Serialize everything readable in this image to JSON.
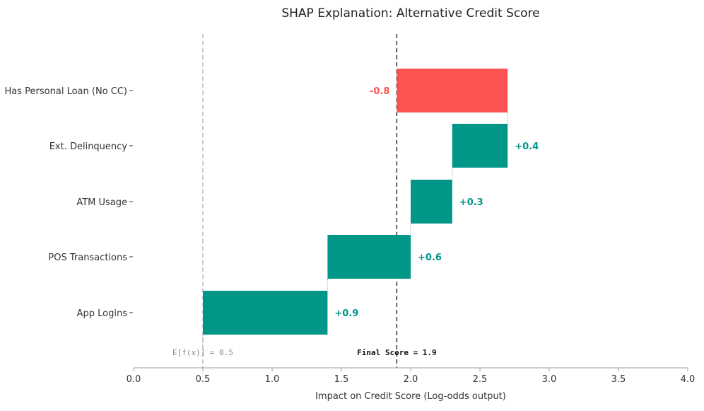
{
  "chart_data": {
    "type": "bar",
    "subtype": "waterfall",
    "title": "SHAP Explanation: Alternative Credit Score",
    "xlabel": "Impact on Credit Score (Log-odds output)",
    "xlim": [
      0.0,
      4.0
    ],
    "xticks": [
      "0.0",
      "0.5",
      "1.0",
      "1.5",
      "2.0",
      "2.5",
      "3.0",
      "3.5",
      "4.0"
    ],
    "xtick_values": [
      0.0,
      0.5,
      1.0,
      1.5,
      2.0,
      2.5,
      3.0,
      3.5,
      4.0
    ],
    "base_value": 0.5,
    "base_label": "E[f(x)] = 0.5",
    "final_value": 1.9,
    "final_label": "Final Score = 1.9",
    "colors": {
      "positive": "#009688",
      "negative": "#ff5252",
      "base_line": "#b0bec5",
      "final_line": "#111111",
      "axis": "#90a4ae"
    },
    "features": [
      {
        "name": "Has Personal Loan (No CC)",
        "start": 2.7,
        "end": 1.9,
        "value": -0.8,
        "label": "-0.8"
      },
      {
        "name": "Ext. Delinquency",
        "start": 2.3,
        "end": 2.7,
        "value": 0.4,
        "label": "+0.4"
      },
      {
        "name": "ATM Usage",
        "start": 2.0,
        "end": 2.3,
        "value": 0.3,
        "label": "+0.3"
      },
      {
        "name": "POS Transactions",
        "start": 1.4,
        "end": 2.0,
        "value": 0.6,
        "label": "+0.6"
      },
      {
        "name": "App Logins",
        "start": 0.5,
        "end": 1.4,
        "value": 0.9,
        "label": "+0.9"
      }
    ]
  }
}
